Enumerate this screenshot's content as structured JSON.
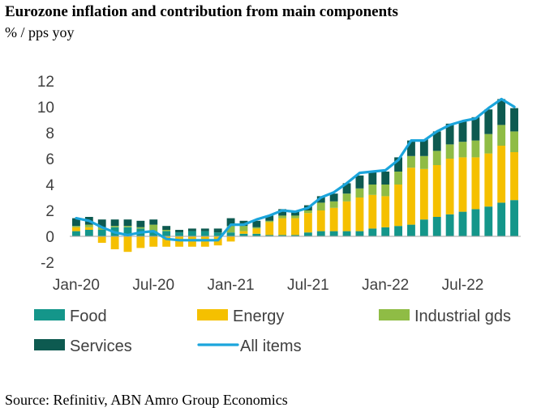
{
  "header": {
    "title": "Eurozone inflation and contribution from main components",
    "subtitle": "% / pps yoy"
  },
  "footer": {
    "source": "Source: Refinitiv, ABN Amro Group Economics"
  },
  "chart_data": {
    "type": "bar",
    "subtype": "stacked bar with line overlay",
    "title": "Eurozone inflation and contribution from main components",
    "ylabel": "% / pps yoy",
    "xlabel": "",
    "ylim": [
      -2,
      12
    ],
    "yticks": [
      -2,
      0,
      2,
      4,
      6,
      8,
      10,
      12
    ],
    "x_tick_labels": [
      {
        "index": 0,
        "label": "Jan-20"
      },
      {
        "index": 6,
        "label": "Jul-20"
      },
      {
        "index": 12,
        "label": "Jan-21"
      },
      {
        "index": 18,
        "label": "Jul-21"
      },
      {
        "index": 24,
        "label": "Jan-22"
      },
      {
        "index": 30,
        "label": "Jul-22"
      }
    ],
    "categories": [
      "Jan-20",
      "Feb-20",
      "Mar-20",
      "Apr-20",
      "May-20",
      "Jun-20",
      "Jul-20",
      "Aug-20",
      "Sep-20",
      "Oct-20",
      "Nov-20",
      "Dec-20",
      "Jan-21",
      "Feb-21",
      "Mar-21",
      "Apr-21",
      "May-21",
      "Jun-21",
      "Jul-21",
      "Aug-21",
      "Sep-21",
      "Oct-21",
      "Nov-21",
      "Dec-21",
      "Jan-22",
      "Feb-22",
      "Mar-22",
      "Apr-22",
      "May-22",
      "Jun-22",
      "Jul-22",
      "Aug-22",
      "Sep-22",
      "Oct-22",
      "Nov-22"
    ],
    "series": [
      {
        "name": "Food",
        "color": "#14968a",
        "kind": "bar",
        "values": [
          0.4,
          0.5,
          0.5,
          0.7,
          0.7,
          0.6,
          0.4,
          0.4,
          0.3,
          0.4,
          0.4,
          0.3,
          0.3,
          0.2,
          0.2,
          0.1,
          0.1,
          0.1,
          0.3,
          0.4,
          0.4,
          0.4,
          0.4,
          0.6,
          0.7,
          0.8,
          0.9,
          1.3,
          1.5,
          1.7,
          1.9,
          2.1,
          2.3,
          2.6,
          2.8
        ]
      },
      {
        "name": "Energy",
        "color": "#f5c000",
        "kind": "bar",
        "values": [
          0.3,
          0.2,
          -0.5,
          -1.0,
          -1.2,
          -0.9,
          -0.8,
          -0.8,
          -0.8,
          -0.8,
          -0.8,
          -0.7,
          -0.4,
          0.2,
          0.4,
          1.0,
          1.3,
          1.3,
          1.5,
          1.6,
          1.8,
          2.3,
          2.6,
          2.6,
          2.4,
          3.2,
          4.4,
          3.9,
          4.0,
          4.3,
          4.2,
          4.0,
          4.1,
          4.4,
          3.7
        ]
      },
      {
        "name": "Industrial gds",
        "color": "#8fbc45",
        "kind": "bar",
        "values": [
          0.1,
          0.2,
          0.2,
          0.1,
          0.1,
          0.1,
          0.5,
          0.1,
          0.0,
          0.0,
          0.0,
          0.0,
          0.5,
          0.4,
          0.1,
          0.1,
          0.2,
          0.2,
          0.2,
          0.6,
          0.5,
          0.6,
          0.7,
          0.8,
          0.9,
          1.0,
          0.9,
          1.0,
          1.1,
          1.1,
          1.2,
          1.3,
          1.5,
          1.6,
          1.6
        ]
      },
      {
        "name": "Services",
        "color": "#0d5a50",
        "kind": "bar",
        "values": [
          0.6,
          0.6,
          0.6,
          0.5,
          0.5,
          0.5,
          0.4,
          0.3,
          0.2,
          0.2,
          0.2,
          0.3,
          0.6,
          0.4,
          0.5,
          0.4,
          0.5,
          0.3,
          0.4,
          0.5,
          0.6,
          0.8,
          1.0,
          1.0,
          1.0,
          1.1,
          1.2,
          1.3,
          1.5,
          1.6,
          1.6,
          1.8,
          1.9,
          2.0,
          1.8
        ]
      },
      {
        "name": "All items",
        "color": "#1ba5dc",
        "kind": "line",
        "values": [
          1.4,
          1.2,
          0.7,
          0.3,
          0.1,
          0.3,
          0.4,
          -0.2,
          -0.3,
          -0.3,
          -0.3,
          -0.3,
          0.9,
          0.9,
          1.3,
          1.6,
          2.0,
          1.9,
          2.2,
          3.0,
          3.4,
          4.1,
          4.9,
          5.0,
          5.1,
          5.9,
          7.4,
          7.4,
          8.1,
          8.6,
          8.9,
          9.1,
          9.9,
          10.6,
          10.0
        ]
      }
    ],
    "legend": {
      "placement": "bottom",
      "entries": [
        {
          "label": "Food",
          "symbol": "square",
          "color": "#14968a"
        },
        {
          "label": "Energy",
          "symbol": "square",
          "color": "#f5c000"
        },
        {
          "label": "Industrial gds",
          "symbol": "square",
          "color": "#8fbc45"
        },
        {
          "label": "Services",
          "symbol": "square",
          "color": "#0d5a50"
        },
        {
          "label": "All items",
          "symbol": "line",
          "color": "#1ba5dc"
        }
      ]
    },
    "grid": false
  }
}
